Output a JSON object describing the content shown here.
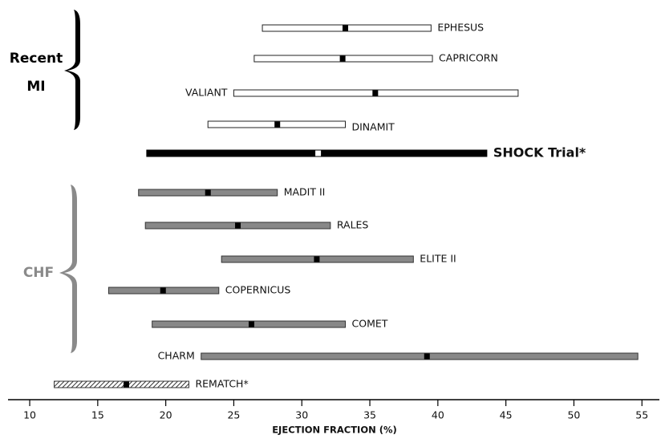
{
  "chart_data": {
    "type": "range",
    "x_label": "EJECTION FRACTION (%)",
    "xlim": [
      8.5,
      56
    ],
    "xticks": [
      10,
      15,
      20,
      25,
      30,
      35,
      40,
      45,
      50,
      55
    ],
    "groups": [
      {
        "label_lines": [
          "Recent",
          "MI"
        ],
        "color": "#000000"
      },
      {
        "label_lines": [
          "CHF"
        ],
        "color": "#8a8a8a"
      }
    ],
    "series": [
      {
        "name": "EPHESUS",
        "low": 27.1,
        "median": 33.2,
        "high": 39.5,
        "style": "open",
        "label_side": "right"
      },
      {
        "name": "CAPRICORN",
        "low": 26.5,
        "median": 33.0,
        "high": 39.6,
        "style": "open",
        "label_side": "right"
      },
      {
        "name": "VALIANT",
        "low": 25.0,
        "median": 35.4,
        "high": 45.9,
        "style": "open",
        "label_side": "left"
      },
      {
        "name": "DINAMIT",
        "low": 23.1,
        "median": 28.2,
        "high": 33.2,
        "style": "open",
        "label_side": "right"
      },
      {
        "name": "SHOCK Trial*",
        "low": 18.6,
        "median": 31.2,
        "high": 43.6,
        "style": "solid",
        "label_side": "right"
      },
      {
        "name": "MADIT II",
        "low": 18.0,
        "median": 23.1,
        "high": 28.2,
        "style": "gray",
        "label_side": "right"
      },
      {
        "name": "RALES",
        "low": 18.5,
        "median": 25.3,
        "high": 32.1,
        "style": "gray",
        "label_side": "right"
      },
      {
        "name": "ELITE II",
        "low": 24.1,
        "median": 31.1,
        "high": 38.2,
        "style": "gray",
        "label_side": "right"
      },
      {
        "name": "COPERNICUS",
        "low": 15.8,
        "median": 19.8,
        "high": 23.9,
        "style": "gray",
        "label_side": "right"
      },
      {
        "name": "COMET",
        "low": 19.0,
        "median": 26.3,
        "high": 33.2,
        "style": "gray",
        "label_side": "right"
      },
      {
        "name": "CHARM",
        "low": 22.6,
        "median": 39.2,
        "high": 54.7,
        "style": "gray",
        "label_side": "left"
      },
      {
        "name": "REMATCH*",
        "low": 11.8,
        "median": 17.1,
        "high": 21.7,
        "style": "hatched",
        "label_side": "right"
      }
    ]
  }
}
